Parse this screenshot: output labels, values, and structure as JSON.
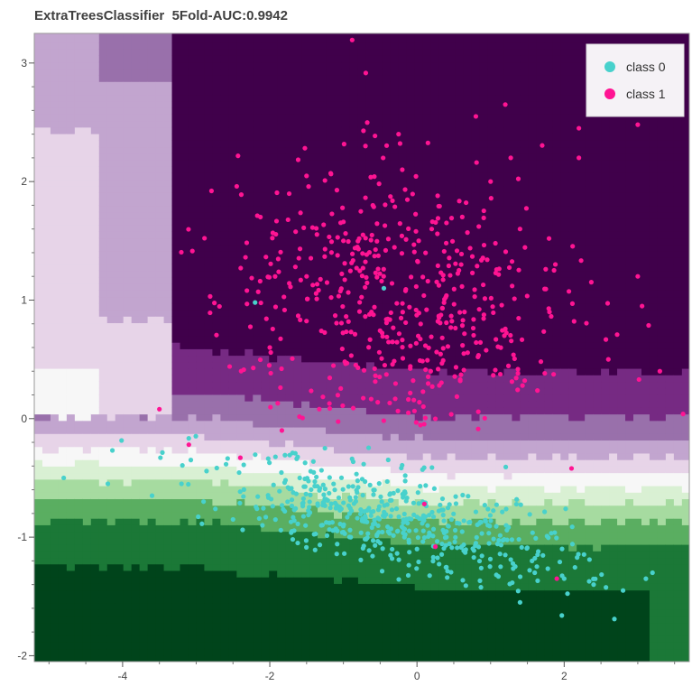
{
  "chart_title": "ExtraTreesClassifier  5Fold-AUC:0.9942",
  "chart_data": {
    "type": "scatter",
    "title": "ExtraTreesClassifier  5Fold-AUC:0.9942",
    "xlabel": "",
    "ylabel": "",
    "xlim": [
      -5.2,
      3.7
    ],
    "ylim": [
      -2.05,
      3.25
    ],
    "xticks": [
      -4,
      -2,
      0,
      2
    ],
    "yticks": [
      -2,
      -1,
      0,
      1,
      2,
      3
    ],
    "grid": false,
    "legend_position": "top-right",
    "background": "decision-region",
    "region_colors": {
      "class_1_strong": "#40004b",
      "class_1_mid": "#762a83",
      "class_1_light": "#9970ab",
      "class_1_pale": "#c2a5cf",
      "class_1_faint": "#e7d4e8",
      "neutral": "#f7f7f7",
      "class_0_faint": "#d9f0d3",
      "class_0_pale": "#a6dba0",
      "class_0_light": "#5aae61",
      "class_0_mid": "#1b7837",
      "class_0_strong": "#00441b"
    },
    "series": [
      {
        "name": "class 0",
        "color": "#48d1cc",
        "center": [
          -0.3,
          -1.0
        ],
        "count": 500,
        "points": [
          [
            -4.8,
            -0.5
          ],
          [
            -4.2,
            -0.55
          ],
          [
            -3.6,
            -0.65
          ],
          [
            -3.2,
            -0.55
          ],
          [
            -2.9,
            -0.7
          ],
          [
            -2.5,
            -0.85
          ],
          [
            -2.1,
            -0.9
          ],
          [
            -1.7,
            -0.95
          ],
          [
            -1.3,
            -0.9
          ],
          [
            -0.9,
            -1.0
          ],
          [
            -0.5,
            -1.05
          ],
          [
            0.0,
            -1.1
          ],
          [
            0.4,
            -1.0
          ],
          [
            0.8,
            -1.05
          ],
          [
            1.2,
            -1.15
          ],
          [
            1.6,
            -1.3
          ],
          [
            2.0,
            -1.35
          ],
          [
            2.4,
            -1.4
          ],
          [
            2.8,
            -1.45
          ],
          [
            3.2,
            -1.3
          ],
          [
            1.4,
            -1.55
          ],
          [
            -2.2,
            0.98
          ],
          [
            -0.45,
            1.1
          ]
        ]
      },
      {
        "name": "class 1",
        "color": "#ff1493",
        "center": [
          -0.2,
          1.0
        ],
        "count": 500,
        "points": [
          [
            -3.5,
            0.08
          ],
          [
            -3.1,
            -0.22
          ],
          [
            -2.4,
            -0.33
          ],
          [
            -2.0,
            0.6
          ],
          [
            -1.5,
            1.2
          ],
          [
            -1.0,
            1.5
          ],
          [
            -0.6,
            1.8
          ],
          [
            -0.2,
            2.1
          ],
          [
            0.2,
            1.6
          ],
          [
            0.6,
            1.3
          ],
          [
            1.0,
            2.0
          ],
          [
            1.4,
            1.6
          ],
          [
            1.8,
            0.9
          ],
          [
            2.2,
            2.2
          ],
          [
            2.6,
            0.5
          ],
          [
            3.0,
            1.2
          ],
          [
            3.3,
            0.4
          ],
          [
            -0.7,
            2.3
          ],
          [
            -0.25,
            2.4
          ],
          [
            0.8,
            2.55
          ],
          [
            1.2,
            2.65
          ],
          [
            2.2,
            2.45
          ],
          [
            3.0,
            2.48
          ],
          [
            0.1,
            -0.72
          ],
          [
            0.25,
            -1.08
          ],
          [
            1.9,
            -1.35
          ],
          [
            2.1,
            -0.42
          ]
        ]
      }
    ]
  },
  "legend": {
    "items": [
      {
        "label": "class 0",
        "color": "#48d1cc"
      },
      {
        "label": "class 1",
        "color": "#ff1493"
      }
    ]
  }
}
